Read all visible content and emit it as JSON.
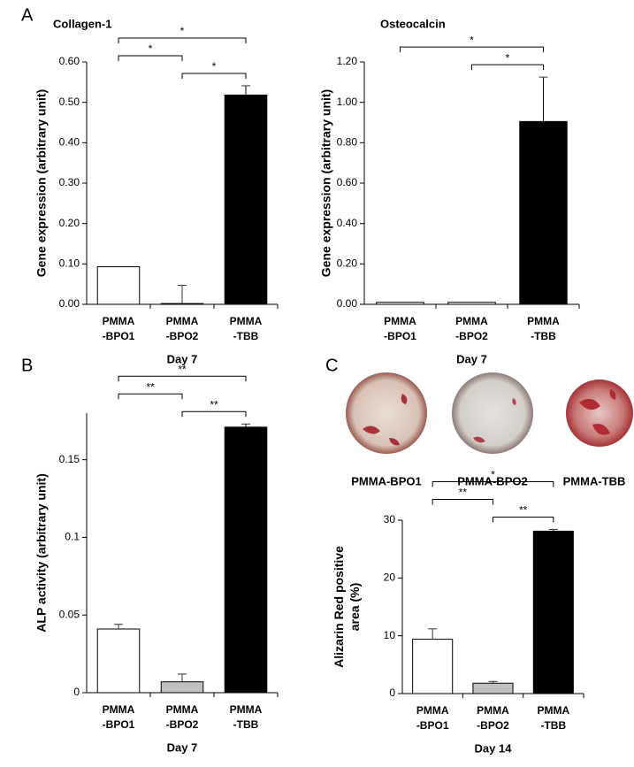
{
  "panel_labels": [
    "A",
    "B",
    "C"
  ],
  "image_labels": [
    "PMMA-BPO1",
    "PMMA-BPO2",
    "PMMA-TBB"
  ],
  "chart_data": [
    {
      "type": "bar",
      "title": "Collagen-1",
      "y_label": "Gene expression (arbitrary unit)",
      "x_label": "Day 7",
      "categories": [
        [
          "PMMA",
          "-BPO1"
        ],
        [
          "PMMA",
          "-BPO2"
        ],
        [
          "PMMA",
          "-TBB"
        ]
      ],
      "values": [
        0.093,
        0.002,
        0.518
      ],
      "errors": [
        null,
        0.045,
        0.023
      ],
      "colors": [
        "#ffffff",
        "#ffffff",
        "#000000"
      ],
      "ylim": [
        0,
        0.6
      ],
      "yticks": [
        {
          "value": 0,
          "label": "0.00"
        },
        {
          "value": 0.1,
          "label": "0.10"
        },
        {
          "value": 0.2,
          "label": "0.20"
        },
        {
          "value": 0.3,
          "label": "0.30"
        },
        {
          "value": 0.4,
          "label": "0.40"
        },
        {
          "value": 0.5,
          "label": "0.50"
        },
        {
          "value": 0.6,
          "label": "0.60"
        }
      ],
      "brackets": [
        {
          "from": 0,
          "to": 2,
          "label": "*"
        },
        {
          "from": 1,
          "to": 2,
          "label": "*"
        },
        {
          "from": 0,
          "to": 1,
          "label": "*"
        }
      ]
    },
    {
      "type": "bar",
      "title": "Osteocalcin",
      "y_label": "Gene expression (arbitrary unit)",
      "x_label": "Day 7",
      "categories": [
        [
          "PMMA",
          "-BPO1"
        ],
        [
          "PMMA",
          "-BPO2"
        ],
        [
          "PMMA",
          "-TBB"
        ]
      ],
      "values": [
        0.01,
        0.01,
        0.905
      ],
      "errors": [
        null,
        null,
        0.22
      ],
      "colors": [
        "#ffffff",
        "#ffffff",
        "#000000"
      ],
      "ylim": [
        0,
        1.2
      ],
      "yticks": [
        {
          "value": 0,
          "label": "0.00"
        },
        {
          "value": 0.2,
          "label": "0.20"
        },
        {
          "value": 0.4,
          "label": "0.40"
        },
        {
          "value": 0.6,
          "label": "0.60"
        },
        {
          "value": 0.8,
          "label": "0.80"
        },
        {
          "value": 1,
          "label": "1.00"
        },
        {
          "value": 1.2,
          "label": "1.20"
        }
      ],
      "brackets": [
        {
          "from": 0,
          "to": 2,
          "label": "*"
        },
        {
          "from": 1,
          "to": 2,
          "label": "*"
        }
      ]
    },
    {
      "type": "bar",
      "y_label": "ALP activity (arbitrary unit)",
      "x_label": "Day 7",
      "categories": [
        [
          "PMMA",
          "-BPO1"
        ],
        [
          "PMMA",
          "-BPO2"
        ],
        [
          "PMMA",
          "-TBB"
        ]
      ],
      "values": [
        0.041,
        0.007,
        0.171
      ],
      "errors": [
        0.003,
        0.005,
        0.002
      ],
      "colors": [
        "#ffffff",
        "#c0c0c0",
        "#000000"
      ],
      "ylim": [
        0,
        0.18
      ],
      "yticks": [
        0,
        0.05,
        0.1,
        0.15
      ],
      "brackets": [
        {
          "from": 0,
          "to": 2,
          "label": "**"
        },
        {
          "from": 1,
          "to": 2,
          "label": "**"
        },
        {
          "from": 0,
          "to": 1,
          "label": "**"
        }
      ]
    },
    {
      "type": "bar",
      "y_label": [
        "Alizarin Red positive",
        "area (%)"
      ],
      "x_label": "Day 14",
      "categories": [
        [
          "PMMA",
          "-BPO1"
        ],
        [
          "PMMA",
          "-BPO2"
        ],
        [
          "PMMA",
          "-TBB"
        ]
      ],
      "values": [
        9.4,
        1.8,
        28.1
      ],
      "errors": [
        1.8,
        0.3,
        0.3
      ],
      "colors": [
        "#ffffff",
        "#c0c0c0",
        "#000000"
      ],
      "ylim": [
        0,
        30
      ],
      "yticks": [
        0,
        10,
        20,
        30
      ],
      "brackets": [
        {
          "from": 0,
          "to": 2,
          "label": "*"
        },
        {
          "from": 1,
          "to": 2,
          "label": "**"
        },
        {
          "from": 0,
          "to": 1,
          "label": "**"
        }
      ]
    }
  ]
}
